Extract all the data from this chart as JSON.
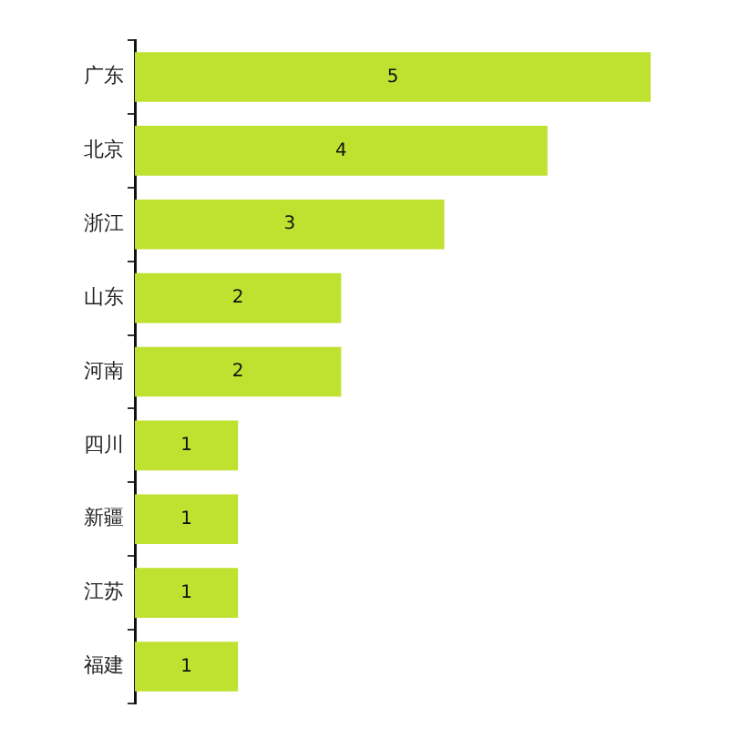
{
  "chart_data": {
    "type": "bar",
    "orientation": "horizontal",
    "categories": [
      "广东",
      "北京",
      "浙江",
      "山东",
      "河南",
      "四川",
      "新疆",
      "江苏",
      "福建"
    ],
    "values": [
      5,
      4,
      3,
      2,
      2,
      1,
      1,
      1,
      1
    ],
    "color": "#bee22f",
    "data_labels": true,
    "tick_labels": "y",
    "grid": false
  }
}
